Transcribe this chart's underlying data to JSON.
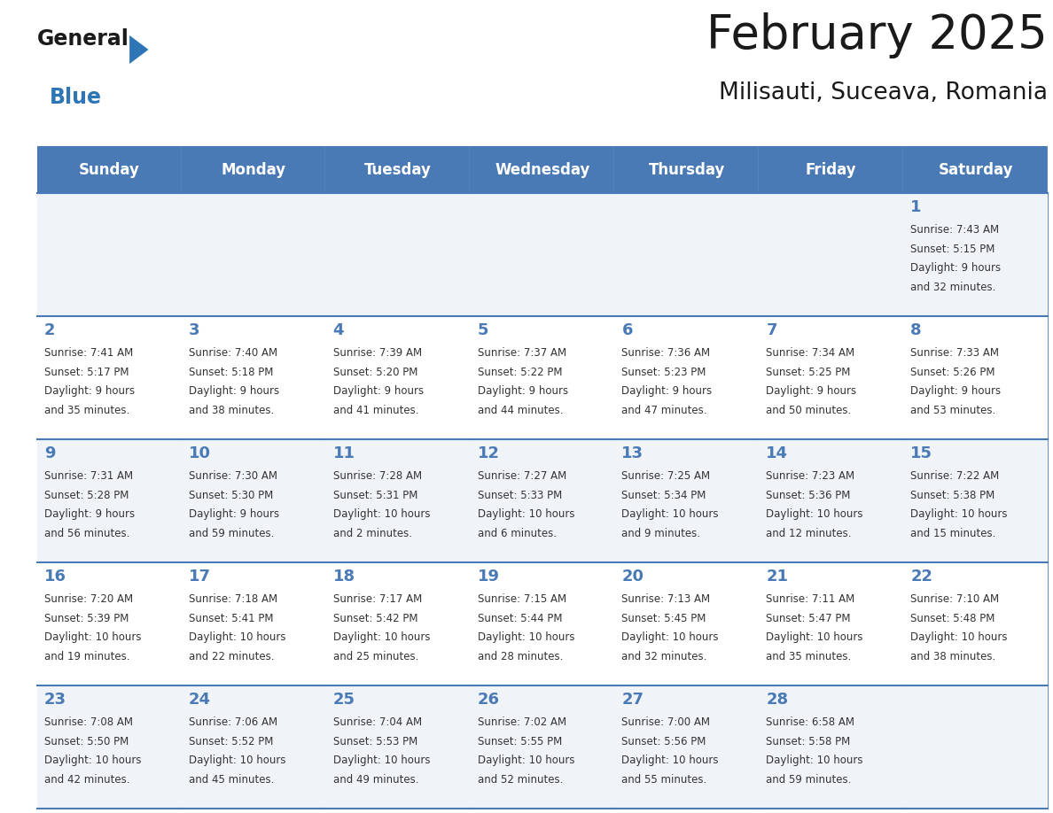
{
  "title": "February 2025",
  "subtitle": "Milisauti, Suceava, Romania",
  "days_of_week": [
    "Sunday",
    "Monday",
    "Tuesday",
    "Wednesday",
    "Thursday",
    "Friday",
    "Saturday"
  ],
  "header_bg": "#4a7ab5",
  "header_text": "#ffffff",
  "row_bg_odd": "#f0f4f8",
  "row_bg_even": "#ffffff",
  "cell_border_color": "#4a7ab5",
  "day_number_color": "#4a7ab5",
  "text_color": "#333333",
  "background": "#ffffff",
  "logo_general_color": "#1a1a1a",
  "logo_blue_color": "#2e75b6",
  "logo_triangle_color": "#2e75b6",
  "calendar_data": [
    [
      null,
      null,
      null,
      null,
      null,
      null,
      {
        "day": "1",
        "sunrise": "7:43 AM",
        "sunset": "5:15 PM",
        "daylight": "9 hours",
        "daylight2": "and 32 minutes."
      }
    ],
    [
      {
        "day": "2",
        "sunrise": "7:41 AM",
        "sunset": "5:17 PM",
        "daylight": "9 hours",
        "daylight2": "and 35 minutes."
      },
      {
        "day": "3",
        "sunrise": "7:40 AM",
        "sunset": "5:18 PM",
        "daylight": "9 hours",
        "daylight2": "and 38 minutes."
      },
      {
        "day": "4",
        "sunrise": "7:39 AM",
        "sunset": "5:20 PM",
        "daylight": "9 hours",
        "daylight2": "and 41 minutes."
      },
      {
        "day": "5",
        "sunrise": "7:37 AM",
        "sunset": "5:22 PM",
        "daylight": "9 hours",
        "daylight2": "and 44 minutes."
      },
      {
        "day": "6",
        "sunrise": "7:36 AM",
        "sunset": "5:23 PM",
        "daylight": "9 hours",
        "daylight2": "and 47 minutes."
      },
      {
        "day": "7",
        "sunrise": "7:34 AM",
        "sunset": "5:25 PM",
        "daylight": "9 hours",
        "daylight2": "and 50 minutes."
      },
      {
        "day": "8",
        "sunrise": "7:33 AM",
        "sunset": "5:26 PM",
        "daylight": "9 hours",
        "daylight2": "and 53 minutes."
      }
    ],
    [
      {
        "day": "9",
        "sunrise": "7:31 AM",
        "sunset": "5:28 PM",
        "daylight": "9 hours",
        "daylight2": "and 56 minutes."
      },
      {
        "day": "10",
        "sunrise": "7:30 AM",
        "sunset": "5:30 PM",
        "daylight": "9 hours",
        "daylight2": "and 59 minutes."
      },
      {
        "day": "11",
        "sunrise": "7:28 AM",
        "sunset": "5:31 PM",
        "daylight": "10 hours",
        "daylight2": "and 2 minutes."
      },
      {
        "day": "12",
        "sunrise": "7:27 AM",
        "sunset": "5:33 PM",
        "daylight": "10 hours",
        "daylight2": "and 6 minutes."
      },
      {
        "day": "13",
        "sunrise": "7:25 AM",
        "sunset": "5:34 PM",
        "daylight": "10 hours",
        "daylight2": "and 9 minutes."
      },
      {
        "day": "14",
        "sunrise": "7:23 AM",
        "sunset": "5:36 PM",
        "daylight": "10 hours",
        "daylight2": "and 12 minutes."
      },
      {
        "day": "15",
        "sunrise": "7:22 AM",
        "sunset": "5:38 PM",
        "daylight": "10 hours",
        "daylight2": "and 15 minutes."
      }
    ],
    [
      {
        "day": "16",
        "sunrise": "7:20 AM",
        "sunset": "5:39 PM",
        "daylight": "10 hours",
        "daylight2": "and 19 minutes."
      },
      {
        "day": "17",
        "sunrise": "7:18 AM",
        "sunset": "5:41 PM",
        "daylight": "10 hours",
        "daylight2": "and 22 minutes."
      },
      {
        "day": "18",
        "sunrise": "7:17 AM",
        "sunset": "5:42 PM",
        "daylight": "10 hours",
        "daylight2": "and 25 minutes."
      },
      {
        "day": "19",
        "sunrise": "7:15 AM",
        "sunset": "5:44 PM",
        "daylight": "10 hours",
        "daylight2": "and 28 minutes."
      },
      {
        "day": "20",
        "sunrise": "7:13 AM",
        "sunset": "5:45 PM",
        "daylight": "10 hours",
        "daylight2": "and 32 minutes."
      },
      {
        "day": "21",
        "sunrise": "7:11 AM",
        "sunset": "5:47 PM",
        "daylight": "10 hours",
        "daylight2": "and 35 minutes."
      },
      {
        "day": "22",
        "sunrise": "7:10 AM",
        "sunset": "5:48 PM",
        "daylight": "10 hours",
        "daylight2": "and 38 minutes."
      }
    ],
    [
      {
        "day": "23",
        "sunrise": "7:08 AM",
        "sunset": "5:50 PM",
        "daylight": "10 hours",
        "daylight2": "and 42 minutes."
      },
      {
        "day": "24",
        "sunrise": "7:06 AM",
        "sunset": "5:52 PM",
        "daylight": "10 hours",
        "daylight2": "and 45 minutes."
      },
      {
        "day": "25",
        "sunrise": "7:04 AM",
        "sunset": "5:53 PM",
        "daylight": "10 hours",
        "daylight2": "and 49 minutes."
      },
      {
        "day": "26",
        "sunrise": "7:02 AM",
        "sunset": "5:55 PM",
        "daylight": "10 hours",
        "daylight2": "and 52 minutes."
      },
      {
        "day": "27",
        "sunrise": "7:00 AM",
        "sunset": "5:56 PM",
        "daylight": "10 hours",
        "daylight2": "and 55 minutes."
      },
      {
        "day": "28",
        "sunrise": "6:58 AM",
        "sunset": "5:58 PM",
        "daylight": "10 hours",
        "daylight2": "and 59 minutes."
      },
      null
    ]
  ],
  "num_rows": 5,
  "num_cols": 7
}
